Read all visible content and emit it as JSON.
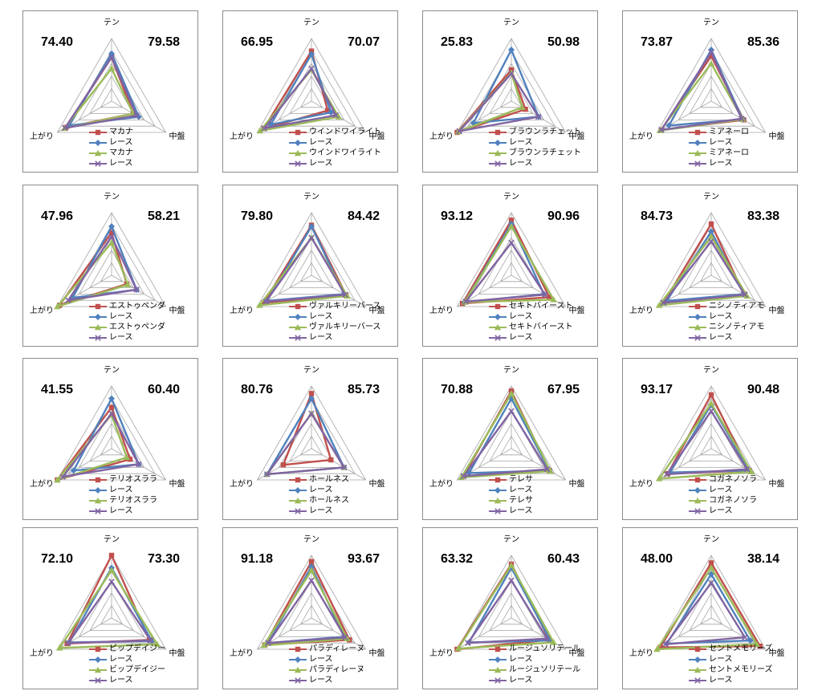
{
  "axes": [
    "テン",
    "中盤",
    "上がり"
  ],
  "series_colors": [
    "#c0504d",
    "#4f81bd",
    "#9bbb59",
    "#8064a2"
  ],
  "series_markers": [
    "square",
    "diamond",
    "triangle",
    "cross"
  ],
  "scale_max": 100,
  "gridlines": 5,
  "chart_data": [
    {
      "type": "radar",
      "left_score": "74.40",
      "right_score": "79.58",
      "legend": [
        "マカナ",
        "レース",
        "マカナ",
        "レース"
      ],
      "series": [
        [
          70,
          40,
          84
        ],
        [
          76,
          50,
          78
        ],
        [
          52,
          40,
          87
        ],
        [
          70,
          46,
          86
        ]
      ]
    },
    {
      "type": "radar",
      "left_score": "66.95",
      "right_score": "70.07",
      "legend": [
        "ウインドワイライト",
        "レース",
        "ウインドワイライト",
        "レース"
      ],
      "series": [
        [
          80,
          30,
          88
        ],
        [
          75,
          36,
          75
        ],
        [
          50,
          50,
          95
        ],
        [
          52,
          45,
          87
        ]
      ]
    },
    {
      "type": "radar",
      "left_score": "25.83",
      "right_score": "50.98",
      "legend": [
        "ブラウンラチェット",
        "レース",
        "ブラウンラチェット",
        "レース"
      ],
      "series": [
        [
          50,
          26,
          100
        ],
        [
          82,
          50,
          70
        ],
        [
          45,
          20,
          98
        ],
        [
          44,
          50,
          96
        ]
      ]
    },
    {
      "type": "radar",
      "left_score": "73.87",
      "right_score": "85.36",
      "legend": [
        "ミアネーロ",
        "レース",
        "ミアネーロ",
        "レース"
      ],
      "series": [
        [
          72,
          60,
          92
        ],
        [
          82,
          58,
          78
        ],
        [
          60,
          58,
          94
        ],
        [
          78,
          56,
          92
        ]
      ]
    },
    {
      "type": "radar",
      "left_score": "47.96",
      "right_score": "58.21",
      "legend": [
        "エストゥペンダ",
        "レース",
        "エストゥペンダ",
        "レース"
      ],
      "series": [
        [
          68,
          28,
          96
        ],
        [
          78,
          46,
          72
        ],
        [
          52,
          30,
          100
        ],
        [
          62,
          46,
          80
        ]
      ]
    },
    {
      "type": "radar",
      "left_score": "79.80",
      "right_score": "84.42",
      "legend": [
        "ヴァルキリーバース",
        "レース",
        "ヴァルキリーバース",
        "レース"
      ],
      "series": [
        [
          80,
          64,
          88
        ],
        [
          78,
          60,
          82
        ],
        [
          60,
          66,
          96
        ],
        [
          60,
          62,
          84
        ]
      ]
    },
    {
      "type": "radar",
      "left_score": "93.12",
      "right_score": "90.96",
      "legend": [
        "セキトバイースト",
        "レース",
        "セキトバイースト",
        "レース"
      ],
      "series": [
        [
          88,
          70,
          90
        ],
        [
          82,
          60,
          86
        ],
        [
          78,
          78,
          86
        ],
        [
          52,
          62,
          84
        ]
      ]
    },
    {
      "type": "radar",
      "left_score": "84.73",
      "right_score": "83.38",
      "legend": [
        "ニシノティアモ",
        "レース",
        "ニシノティアモ",
        "レース"
      ],
      "series": [
        [
          82,
          60,
          88
        ],
        [
          70,
          60,
          82
        ],
        [
          62,
          66,
          96
        ],
        [
          54,
          62,
          88
        ]
      ]
    },
    {
      "type": "radar",
      "left_score": "41.55",
      "right_score": "60.40",
      "legend": [
        "テリオスララ",
        "レース",
        "テリオスララ",
        "レース"
      ],
      "series": [
        [
          66,
          34,
          100
        ],
        [
          80,
          50,
          70
        ],
        [
          54,
          28,
          100
        ],
        [
          56,
          50,
          90
        ]
      ]
    },
    {
      "type": "radar",
      "left_score": "80.76",
      "right_score": "85.73",
      "legend": [
        "ホールネス",
        "レース",
        "ホールネス",
        "レース"
      ],
      "series": [
        [
          88,
          36,
          52
        ],
        [
          80,
          60,
          82
        ],
        [
          56,
          60,
          82
        ],
        [
          56,
          60,
          82
        ]
      ]
    },
    {
      "type": "radar",
      "left_score": "70.88",
      "right_score": "67.95",
      "legend": [
        "テレサ",
        "レース",
        "テレサ",
        "レース"
      ],
      "series": [
        [
          92,
          70,
          88
        ],
        [
          80,
          70,
          78
        ],
        [
          88,
          72,
          92
        ],
        [
          60,
          66,
          88
        ]
      ]
    },
    {
      "type": "radar",
      "left_score": "93.17",
      "right_score": "90.48",
      "legend": [
        "コガネノソラ",
        "レース",
        "コガネノソラ",
        "レース"
      ],
      "series": [
        [
          86,
          70,
          80
        ],
        [
          70,
          70,
          76
        ],
        [
          72,
          74,
          96
        ],
        [
          60,
          66,
          82
        ]
      ]
    },
    {
      "type": "radar",
      "left_score": "72.10",
      "right_score": "73.30",
      "legend": [
        "ビップデイジー",
        "レース",
        "ビップデイジー",
        "レース"
      ],
      "series": [
        [
          100,
          70,
          82
        ],
        [
          80,
          74,
          78
        ],
        [
          76,
          84,
          96
        ],
        [
          58,
          72,
          80
        ]
      ]
    },
    {
      "type": "radar",
      "left_score": "91.18",
      "right_score": "93.67",
      "legend": [
        "パラディレーヌ",
        "レース",
        "パラディレーヌ",
        "レース"
      ],
      "series": [
        [
          90,
          70,
          86
        ],
        [
          82,
          60,
          80
        ],
        [
          76,
          66,
          88
        ],
        [
          60,
          62,
          80
        ]
      ]
    },
    {
      "type": "radar",
      "left_score": "63.32",
      "right_score": "60.43",
      "legend": [
        "ルージュソリテール",
        "レース",
        "ルージュソリテール",
        "レース"
      ],
      "series": [
        [
          86,
          70,
          100
        ],
        [
          80,
          72,
          78
        ],
        [
          84,
          78,
          98
        ],
        [
          60,
          66,
          80
        ]
      ]
    },
    {
      "type": "radar",
      "left_score": "48.00",
      "right_score": "38.14",
      "legend": [
        "セントメモリーズ",
        "レース",
        "セントメモリーズ",
        "レース"
      ],
      "series": [
        [
          88,
          90,
          94
        ],
        [
          70,
          72,
          82
        ],
        [
          80,
          84,
          100
        ],
        [
          56,
          62,
          84
        ]
      ]
    }
  ]
}
